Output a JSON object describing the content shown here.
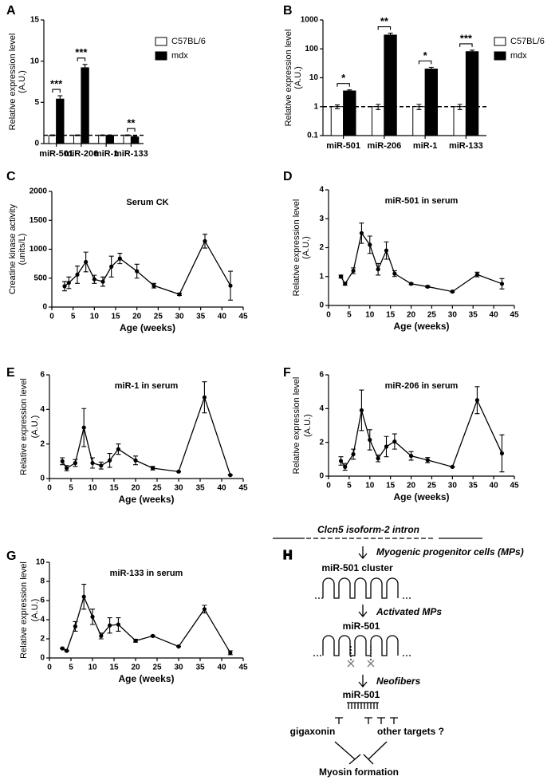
{
  "chart_data": [
    {
      "type": "bar",
      "panel": "A",
      "ylabel": [
        "Relative expression level",
        "(A.U.)"
      ],
      "categories": [
        "miR-501",
        "miR-206",
        "miR-1",
        "miR-133"
      ],
      "series": [
        {
          "name": "C57BL/6",
          "color": "#ffffff",
          "values": [
            1,
            1,
            1,
            1
          ],
          "errors": [
            0.05,
            0.05,
            0.05,
            0.05
          ]
        },
        {
          "name": "mdx",
          "color": "#000000",
          "values": [
            5.4,
            9.2,
            1.0,
            0.8
          ],
          "errors": [
            0.4,
            0.4,
            0.05,
            0.1
          ]
        }
      ],
      "significance": [
        "***",
        "***",
        null,
        "**"
      ],
      "reference_line": 1,
      "ylim": [
        0,
        15
      ],
      "yticks": [
        0,
        5,
        10,
        15
      ],
      "legend": "right"
    },
    {
      "type": "bar",
      "panel": "B",
      "ylabel": [
        "Relative expression level",
        "(A.U.)"
      ],
      "log_y": true,
      "categories": [
        "miR-501",
        "miR-206",
        "miR-1",
        "miR-133"
      ],
      "series": [
        {
          "name": "C57BL/6",
          "color": "#ffffff",
          "values": [
            1,
            1,
            1,
            1
          ],
          "errors": [
            0.15,
            0.2,
            0.2,
            0.2
          ]
        },
        {
          "name": "mdx",
          "color": "#000000",
          "values": [
            3.5,
            300,
            20,
            80
          ],
          "errors": [
            0.3,
            50,
            3,
            10
          ]
        }
      ],
      "significance": [
        "*",
        "**",
        "*",
        "***"
      ],
      "reference_line": 1,
      "ylim": [
        0.1,
        1000
      ],
      "yticks": [
        0.1,
        1,
        10,
        100,
        1000
      ],
      "legend": "right"
    },
    {
      "type": "line",
      "panel": "C",
      "title": "Serum CK",
      "ylabel": [
        "Creatine kinase activity",
        "(units/L)"
      ],
      "xlabel": "Age (weeks)",
      "x": [
        3,
        4,
        6,
        8,
        10,
        12,
        14,
        16,
        20,
        24,
        30,
        36,
        42
      ],
      "values": [
        360,
        420,
        560,
        780,
        480,
        440,
        700,
        840,
        620,
        370,
        220,
        1140,
        370
      ],
      "errors": [
        80,
        100,
        150,
        170,
        70,
        80,
        180,
        90,
        120,
        40,
        20,
        120,
        250
      ],
      "xlim": [
        0,
        45
      ],
      "xticks": [
        0,
        5,
        10,
        15,
        20,
        25,
        30,
        35,
        40,
        45
      ],
      "ylim": [
        0,
        2000
      ],
      "yticks": [
        0,
        500,
        1000,
        1500,
        2000
      ]
    },
    {
      "type": "line",
      "panel": "D",
      "title": "miR-501 in serum",
      "ylabel": [
        "Relative expression level",
        "(A.U.)"
      ],
      "xlabel": "Age (weeks)",
      "x": [
        3,
        4,
        6,
        8,
        10,
        12,
        14,
        16,
        20,
        24,
        30,
        36,
        42
      ],
      "values": [
        1.0,
        0.75,
        1.2,
        2.5,
        2.1,
        1.25,
        1.9,
        1.1,
        0.75,
        0.65,
        0.48,
        1.07,
        0.75
      ],
      "errors": [
        0.05,
        0.05,
        0.1,
        0.35,
        0.3,
        0.2,
        0.3,
        0.1,
        0.03,
        0.03,
        0.02,
        0.08,
        0.18
      ],
      "xlim": [
        0,
        45
      ],
      "xticks": [
        0,
        5,
        10,
        15,
        20,
        25,
        30,
        35,
        40,
        45
      ],
      "ylim": [
        0,
        4
      ],
      "yticks": [
        0,
        1,
        2,
        3,
        4
      ]
    },
    {
      "type": "line",
      "panel": "E",
      "title": "miR-1 in serum",
      "ylabel": [
        "Relative expression level",
        "(A.U.)"
      ],
      "xlabel": "Age (weeks)",
      "x": [
        3,
        4,
        6,
        8,
        10,
        12,
        14,
        16,
        20,
        24,
        30,
        36,
        42
      ],
      "values": [
        1.0,
        0.6,
        0.9,
        2.95,
        0.9,
        0.75,
        1.05,
        1.7,
        1.05,
        0.6,
        0.4,
        4.7,
        0.2
      ],
      "errors": [
        0.2,
        0.15,
        0.2,
        1.1,
        0.3,
        0.2,
        0.4,
        0.3,
        0.25,
        0.1,
        0.02,
        0.9,
        0.02
      ],
      "xlim": [
        0,
        45
      ],
      "xticks": [
        0,
        5,
        10,
        15,
        20,
        25,
        30,
        35,
        40,
        45
      ],
      "ylim": [
        0,
        6
      ],
      "yticks": [
        0,
        2,
        4,
        6
      ]
    },
    {
      "type": "line",
      "panel": "F",
      "title": "miR-206 in serum",
      "ylabel": [
        "Relative expression level",
        "(A.U.)"
      ],
      "xlabel": "Age (weeks)",
      "x": [
        3,
        4,
        6,
        8,
        10,
        12,
        14,
        16,
        20,
        24,
        30,
        36,
        42
      ],
      "values": [
        0.9,
        0.55,
        1.3,
        3.9,
        2.15,
        1.05,
        1.75,
        2.05,
        1.2,
        0.95,
        0.55,
        4.5,
        1.35
      ],
      "errors": [
        0.25,
        0.2,
        0.3,
        1.2,
        0.6,
        0.2,
        0.6,
        0.45,
        0.25,
        0.15,
        0.02,
        0.8,
        1.1
      ],
      "xlim": [
        0,
        45
      ],
      "xticks": [
        0,
        5,
        10,
        15,
        20,
        25,
        30,
        35,
        40,
        45
      ],
      "ylim": [
        0,
        6
      ],
      "yticks": [
        0,
        2,
        4,
        6
      ]
    },
    {
      "type": "line",
      "panel": "G",
      "title": "miR-133 in serum",
      "ylabel": [
        "Relative expression level",
        "(A.U.)"
      ],
      "xlabel": "Age (weeks)",
      "x": [
        3,
        4,
        6,
        8,
        10,
        12,
        14,
        16,
        20,
        24,
        30,
        36,
        42
      ],
      "values": [
        1.0,
        0.75,
        3.3,
        6.4,
        4.3,
        2.3,
        3.4,
        3.5,
        1.8,
        2.3,
        1.2,
        5.1,
        0.55
      ],
      "errors": [
        0.05,
        0.05,
        0.5,
        1.3,
        0.8,
        0.3,
        0.8,
        0.7,
        0.15,
        0.05,
        0.02,
        0.4,
        0.2
      ],
      "xlim": [
        0,
        45
      ],
      "xticks": [
        0,
        5,
        10,
        15,
        20,
        25,
        30,
        35,
        40,
        45
      ],
      "ylim": [
        0,
        10
      ],
      "yticks": [
        0,
        2,
        4,
        6,
        8,
        10
      ]
    }
  ],
  "diagram": {
    "panel": "H",
    "gene": "Clcn5 isoform-2 intron",
    "step1": "Myogenic progenitor cells (MPs)",
    "cluster": "miR-501 cluster",
    "step2": "Activated MPs",
    "mature1": "miR-501",
    "step3": "Neofibers",
    "mature2": "miR-501",
    "target1": "gigaxonin",
    "target2": "other targets ?",
    "outcome": "Myosin formation"
  }
}
